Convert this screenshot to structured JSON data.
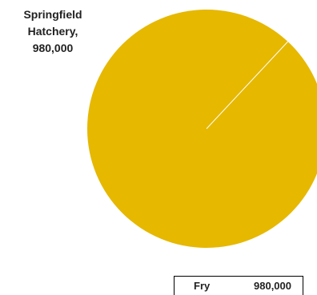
{
  "chart_data": {
    "type": "pie",
    "slices": [
      {
        "label": "Springfield Hatchery",
        "value": 980000,
        "value_text": "980,000",
        "color": "#e6b800"
      }
    ],
    "data_label": {
      "line1": "Springfield",
      "line2": "Hatchery,",
      "line3": "980,000"
    },
    "table": {
      "category": "Fry",
      "value": "980,000"
    }
  },
  "colors": {
    "slice": "#e6b800",
    "separator": "#ffffff"
  }
}
